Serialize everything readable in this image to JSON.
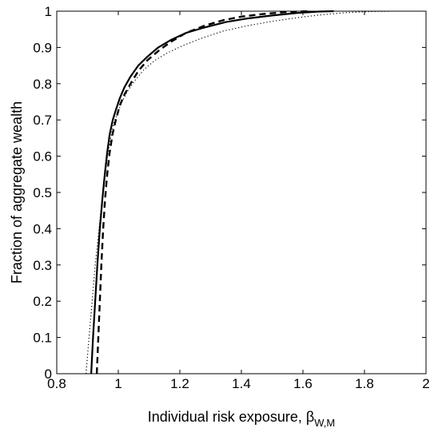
{
  "chart_data": {
    "type": "line",
    "title": "",
    "xlabel": "Individual risk exposure, ",
    "xlabel_symbol": "β",
    "xlabel_subscript": "W,M",
    "ylabel": "Fraction of aggregate wealth",
    "xlim": [
      0.8,
      2
    ],
    "ylim": [
      0,
      1
    ],
    "xticks": [
      0.8,
      1,
      1.2,
      1.4,
      1.6,
      1.8,
      2
    ],
    "yticks": [
      0,
      0.1,
      0.2,
      0.3,
      0.4,
      0.5,
      0.6,
      0.7,
      0.8,
      0.9,
      1
    ],
    "xtick_labels": [
      "0.8",
      "1",
      "1.2",
      "1.4",
      "1.6",
      "1.8",
      "2"
    ],
    "ytick_labels": [
      "0",
      "0.1",
      "0.2",
      "0.3",
      "0.4",
      "0.5",
      "0.6",
      "0.7",
      "0.8",
      "0.9",
      "1"
    ],
    "grid": false,
    "legend": "none",
    "series": [
      {
        "style": "solid",
        "x": [
          0.912,
          0.918,
          0.925,
          0.932,
          0.94,
          0.948,
          0.956,
          0.964,
          0.972,
          0.982,
          0.993,
          1.005,
          1.02,
          1.04,
          1.065,
          1.095,
          1.13,
          1.17,
          1.22,
          1.28,
          1.35,
          1.42,
          1.5,
          1.58,
          1.65,
          1.7
        ],
        "y": [
          0.0,
          0.1,
          0.2,
          0.3,
          0.4,
          0.48,
          0.55,
          0.61,
          0.66,
          0.7,
          0.73,
          0.76,
          0.79,
          0.82,
          0.85,
          0.875,
          0.9,
          0.92,
          0.94,
          0.955,
          0.97,
          0.98,
          0.988,
          0.995,
          0.999,
          1.0
        ]
      },
      {
        "style": "dashed",
        "x": [
          0.93,
          0.935,
          0.94,
          0.945,
          0.951,
          0.957,
          0.964,
          0.972,
          0.981,
          0.992,
          1.005,
          1.02,
          1.04,
          1.065,
          1.095,
          1.13,
          1.17,
          1.22,
          1.28,
          1.34,
          1.4,
          1.47,
          1.55,
          1.62
        ],
        "y": [
          0.0,
          0.1,
          0.2,
          0.3,
          0.4,
          0.48,
          0.55,
          0.61,
          0.66,
          0.7,
          0.74,
          0.77,
          0.8,
          0.835,
          0.865,
          0.89,
          0.915,
          0.94,
          0.96,
          0.975,
          0.985,
          0.992,
          0.998,
          1.0
        ]
      },
      {
        "style": "dotted",
        "x": [
          0.895,
          0.905,
          0.915,
          0.925,
          0.935,
          0.945,
          0.955,
          0.965,
          0.975,
          0.985,
          0.998,
          1.012,
          1.03,
          1.055,
          1.085,
          1.12,
          1.16,
          1.21,
          1.27,
          1.34,
          1.42,
          1.5,
          1.58,
          1.66,
          1.74,
          1.82,
          1.88
        ],
        "y": [
          0.0,
          0.1,
          0.2,
          0.3,
          0.38,
          0.46,
          0.53,
          0.6,
          0.65,
          0.69,
          0.72,
          0.75,
          0.78,
          0.81,
          0.84,
          0.865,
          0.885,
          0.905,
          0.925,
          0.945,
          0.96,
          0.972,
          0.982,
          0.99,
          0.996,
          0.999,
          1.0
        ]
      }
    ]
  }
}
